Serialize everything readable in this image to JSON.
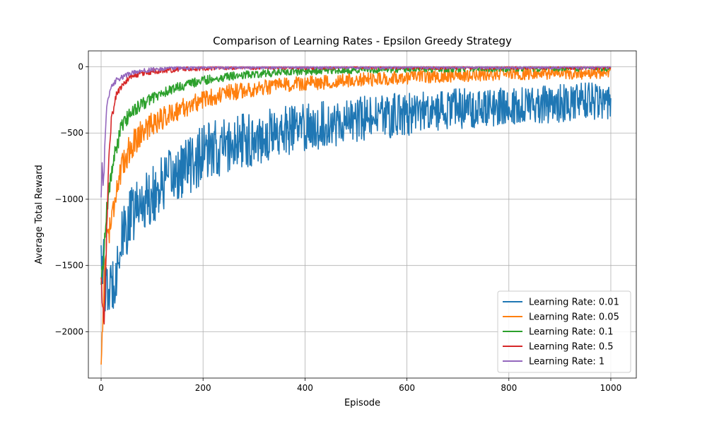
{
  "chart_data": {
    "type": "line",
    "title": "Comparison of Learning Rates - Epsilon Greedy Strategy",
    "xlabel": "Episode",
    "ylabel": "Average Total Reward",
    "xlim": [
      -25,
      1050
    ],
    "ylim": [
      -2350,
      120
    ],
    "xticks": [
      0,
      200,
      400,
      600,
      800,
      1000
    ],
    "yticks": [
      -2000,
      -1500,
      -1000,
      -500,
      0
    ],
    "xtick_labels": [
      "0",
      "200",
      "400",
      "600",
      "800",
      "1000"
    ],
    "ytick_labels": [
      "−2000",
      "−1500",
      "−1000",
      "−500",
      "0"
    ],
    "grid": true,
    "legend_position": "lower-right",
    "episodes": 1000,
    "series": [
      {
        "name": "Learning Rate: 0.01",
        "color": "#1f77b4",
        "x": [
          0,
          10,
          20,
          30,
          40,
          50,
          60,
          80,
          100,
          120,
          150,
          200,
          250,
          300,
          350,
          400,
          450,
          500,
          550,
          600,
          650,
          700,
          750,
          800,
          850,
          900,
          950,
          1000
        ],
        "y": [
          -1300,
          -1700,
          -1650,
          -1500,
          -1300,
          -1200,
          -1100,
          -1000,
          -950,
          -870,
          -780,
          -640,
          -570,
          -520,
          -470,
          -440,
          -410,
          -380,
          -360,
          -340,
          -320,
          -305,
          -290,
          -280,
          -270,
          -260,
          -250,
          -240
        ],
        "noise": 140
      },
      {
        "name": "Learning Rate: 0.05",
        "color": "#ff7f0e",
        "x": [
          0,
          5,
          10,
          20,
          30,
          40,
          50,
          60,
          80,
          100,
          150,
          200,
          250,
          300,
          400,
          500,
          600,
          700,
          800,
          900,
          1000
        ],
        "y": [
          -2240,
          -1700,
          -1300,
          -1150,
          -900,
          -780,
          -650,
          -580,
          -480,
          -420,
          -320,
          -240,
          -190,
          -160,
          -120,
          -95,
          -75,
          -60,
          -50,
          -45,
          -40
        ],
        "noise": 70
      },
      {
        "name": "Learning Rate: 0.1",
        "color": "#2ca02c",
        "x": [
          0,
          5,
          10,
          20,
          30,
          40,
          60,
          80,
          100,
          150,
          200,
          250,
          300,
          400,
          500,
          600,
          800,
          1000
        ],
        "y": [
          -1650,
          -1400,
          -1100,
          -800,
          -600,
          -450,
          -330,
          -280,
          -230,
          -150,
          -100,
          -70,
          -50,
          -30,
          -20,
          -12,
          -8,
          -5
        ],
        "noise": 45
      },
      {
        "name": "Learning Rate: 0.5",
        "color": "#d62728",
        "x": [
          0,
          3,
          6,
          9,
          12,
          15,
          20,
          30,
          40,
          50,
          60,
          80,
          100,
          130,
          160,
          200,
          250,
          300,
          400,
          1000
        ],
        "y": [
          -1600,
          -1800,
          -1950,
          -1500,
          -1100,
          -700,
          -400,
          -200,
          -150,
          -100,
          -70,
          -50,
          -35,
          -25,
          -15,
          -8,
          -4,
          -2,
          -1,
          -1
        ],
        "noise": 30
      },
      {
        "name": "Learning Rate: 1",
        "color": "#9467bd",
        "x": [
          0,
          2,
          4,
          6,
          8,
          10,
          14,
          20,
          30,
          40,
          50,
          60,
          80,
          100,
          130,
          160,
          200,
          250,
          300,
          1000
        ],
        "y": [
          -1000,
          -700,
          -900,
          -750,
          -500,
          -350,
          -250,
          -150,
          -100,
          -80,
          -60,
          -45,
          -30,
          -20,
          -12,
          -6,
          -3,
          -2,
          -1,
          -1
        ],
        "noise": 25
      }
    ]
  }
}
